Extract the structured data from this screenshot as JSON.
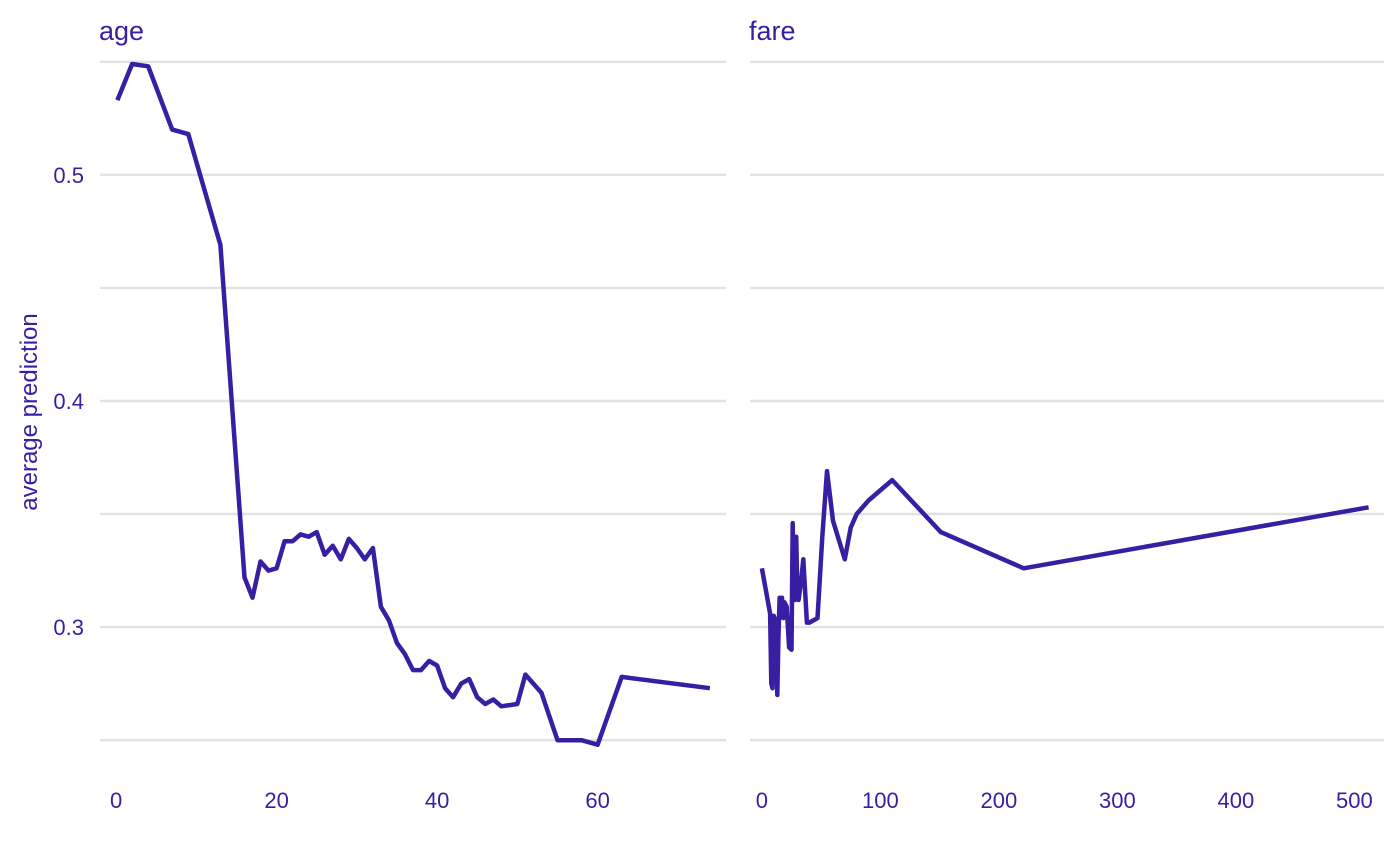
{
  "chart_data": [
    {
      "type": "line",
      "title": "age",
      "xlabel": "",
      "ylabel": "average prediction",
      "xlim": [
        -2,
        76
      ],
      "ylim": [
        0.243,
        0.553
      ],
      "x_ticks": [
        0,
        20,
        40,
        60
      ],
      "y_ticks": [
        0.3,
        0.4,
        0.5
      ],
      "y_tick_labels": [
        "0.3",
        "0.4",
        "0.5"
      ],
      "grid": true,
      "series": [
        {
          "x": [
            0.17,
            2,
            4,
            7,
            9,
            13,
            16,
            17,
            18,
            19,
            20,
            21,
            22,
            23,
            24,
            25,
            26,
            27,
            28,
            29,
            30,
            31,
            32,
            33,
            34,
            35,
            36,
            37,
            38,
            39,
            40,
            41,
            42,
            43,
            44,
            45,
            46,
            47,
            48,
            50,
            51,
            53,
            55,
            58,
            60,
            63,
            74
          ],
          "y": [
            0.533,
            0.549,
            0.548,
            0.52,
            0.518,
            0.469,
            0.322,
            0.313,
            0.329,
            0.325,
            0.326,
            0.338,
            0.338,
            0.341,
            0.34,
            0.342,
            0.332,
            0.336,
            0.33,
            0.339,
            0.335,
            0.33,
            0.335,
            0.309,
            0.303,
            0.293,
            0.288,
            0.281,
            0.281,
            0.285,
            0.283,
            0.273,
            0.269,
            0.275,
            0.277,
            0.269,
            0.266,
            0.268,
            0.265,
            0.266,
            0.279,
            0.271,
            0.25,
            0.25,
            0.248,
            0.278,
            0.273
          ]
        }
      ]
    },
    {
      "type": "line",
      "title": "fare",
      "xlabel": "",
      "ylabel": "",
      "xlim": [
        -10,
        525
      ],
      "ylim": [
        0.243,
        0.553
      ],
      "x_ticks": [
        0,
        100,
        200,
        300,
        400,
        500
      ],
      "grid": true,
      "series": [
        {
          "x": [
            0,
            7,
            8,
            9,
            10,
            12,
            13,
            14,
            15,
            16,
            17,
            18,
            19,
            21,
            23,
            25,
            26,
            27,
            28,
            29,
            30,
            31,
            33,
            35,
            38,
            40,
            47,
            51,
            55,
            60,
            70,
            75,
            80,
            90,
            110,
            151,
            221,
            512
          ],
          "y": [
            0.326,
            0.306,
            0.275,
            0.273,
            0.305,
            0.302,
            0.27,
            0.295,
            0.313,
            0.306,
            0.313,
            0.304,
            0.311,
            0.309,
            0.291,
            0.29,
            0.346,
            0.312,
            0.312,
            0.34,
            0.314,
            0.312,
            0.32,
            0.33,
            0.302,
            0.302,
            0.304,
            0.34,
            0.369,
            0.347,
            0.33,
            0.344,
            0.35,
            0.356,
            0.365,
            0.342,
            0.326,
            0.353
          ]
        }
      ]
    }
  ]
}
